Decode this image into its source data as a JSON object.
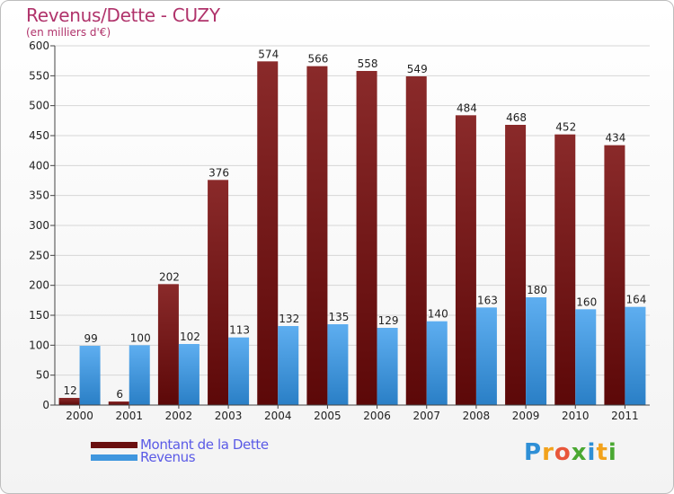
{
  "title": "Revenus/Dette - CUZY",
  "subtitle": "(en milliers d'€)",
  "colors": {
    "debt": "#7a1414",
    "revenue": "#3f96de",
    "title": "#b0336b",
    "legend_text": "#5a5ae6"
  },
  "legend": [
    {
      "label": "Montant de la Dette",
      "color": "#6a0f0f"
    },
    {
      "label": "Revenus",
      "color": "#3f96de"
    }
  ],
  "logo": {
    "text": "Proxiti",
    "letters": [
      "P",
      "r",
      "o",
      "x",
      "i",
      "t",
      "i"
    ],
    "colors": [
      "#2e8fd6",
      "#f2a21c",
      "#e8563a",
      "#4aa832",
      "#2e8fd6",
      "#f2a21c",
      "#4aa832"
    ]
  },
  "chart_data": {
    "type": "bar",
    "categories": [
      "2000",
      "2001",
      "2002",
      "2003",
      "2004",
      "2005",
      "2006",
      "2007",
      "2008",
      "2009",
      "2010",
      "2011"
    ],
    "series": [
      {
        "name": "Montant de la Dette",
        "values": [
          12,
          6,
          202,
          376,
          574,
          566,
          558,
          549,
          484,
          468,
          452,
          434
        ]
      },
      {
        "name": "Revenus",
        "values": [
          99,
          100,
          102,
          113,
          132,
          135,
          129,
          140,
          163,
          180,
          160,
          164
        ]
      }
    ],
    "ylim": [
      0,
      600
    ],
    "yticks": [
      0,
      50,
      100,
      150,
      200,
      250,
      300,
      350,
      400,
      450,
      500,
      550,
      600
    ],
    "grid": true,
    "legend_position": "bottom-left"
  }
}
